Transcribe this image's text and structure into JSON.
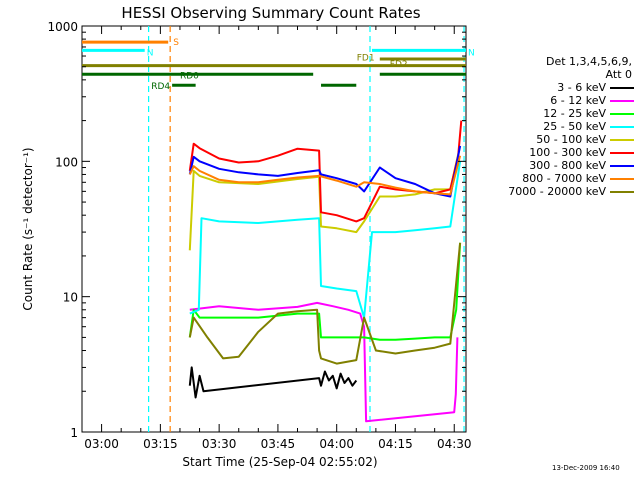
{
  "chart_data": {
    "type": "line",
    "title": "HESSI Observing Summary Count Rates",
    "xlabel": "Start Time (25-Sep-04 02:55:02)",
    "ylabel": "Count Rate (s⁻¹ detector⁻¹)",
    "yscale": "log",
    "ylim": [
      1,
      1000
    ],
    "xlim_min": [
      0,
      98
    ],
    "x_ticks_min": [
      5,
      20,
      35,
      50,
      65,
      80,
      95
    ],
    "x_tick_labels": [
      "03:00",
      "03:15",
      "03:30",
      "03:45",
      "04:00",
      "04:15",
      "04:30"
    ],
    "y_ticks": [
      1,
      10,
      100,
      1000
    ],
    "y_tick_labels": [
      "1",
      "10",
      "100",
      "1000"
    ],
    "legend_header": [
      "Det 1,3,4,5,6,9,",
      "Att 0"
    ],
    "legend_placement": "right, outside plot",
    "series": [
      {
        "name": "3 - 6 keV",
        "color": "#000000",
        "x": [
          27.5,
          28,
          29,
          30,
          31,
          60.5,
          61,
          62,
          63,
          64,
          65,
          66,
          67,
          68,
          69,
          70
        ],
        "y": [
          2.2,
          3,
          1.8,
          2.6,
          2,
          2.5,
          2.2,
          2.8,
          2.4,
          2.6,
          2.1,
          2.7,
          2.3,
          2.5,
          2.2,
          2.4
        ]
      },
      {
        "name": "6 - 12 keV",
        "color": "#ff00ff",
        "x": [
          27.5,
          35,
          45,
          55,
          60,
          64,
          68,
          71,
          72,
          72.5,
          95,
          95.4,
          95.8
        ],
        "y": [
          8,
          8.5,
          8,
          8.4,
          9,
          8.5,
          8,
          7.5,
          6,
          1.2,
          1.4,
          1.9,
          5
        ]
      },
      {
        "name": "12 - 25 keV",
        "color": "#00ff00",
        "x": [
          27.5,
          28.5,
          30,
          35,
          45,
          55,
          60.5,
          61,
          62,
          68,
          72,
          76,
          80,
          85,
          90,
          94,
          95.5,
          96.5
        ],
        "y": [
          5,
          8,
          7,
          7,
          7,
          7.5,
          7.5,
          5,
          5,
          5,
          5,
          4.8,
          4.8,
          4.9,
          5,
          5,
          8,
          25
        ]
      },
      {
        "name": "25 - 50 keV",
        "color": "#00ffff",
        "x": [
          27.5,
          29.8,
          30.5,
          35,
          45,
          55,
          60.5,
          61,
          65,
          70,
          72,
          74,
          80,
          85,
          90,
          94,
          96.5
        ],
        "y": [
          7.5,
          8,
          38,
          36,
          35,
          37,
          38,
          12,
          11.5,
          11,
          7,
          30,
          30,
          31,
          32,
          33,
          100
        ]
      },
      {
        "name": "50 - 100 keV",
        "color": "#cccc00",
        "x": [
          27.5,
          28.5,
          30,
          35,
          45,
          55,
          60.5,
          61,
          65,
          70,
          72,
          76,
          80,
          85,
          90,
          94,
          96.5
        ],
        "y": [
          22,
          85,
          78,
          70,
          68,
          74,
          77,
          33,
          32,
          30,
          36,
          55,
          55,
          57,
          62,
          62,
          130
        ]
      },
      {
        "name": "100 - 300 keV",
        "color": "#ff0000",
        "x": [
          27.5,
          28.5,
          30,
          35,
          40,
          45,
          50,
          55,
          60.5,
          61,
          65,
          70,
          72,
          76,
          80,
          85,
          90,
          94,
          96,
          96.8
        ],
        "y": [
          85,
          135,
          125,
          105,
          98,
          100,
          110,
          124,
          120,
          42,
          40,
          36,
          38,
          65,
          62,
          60,
          58,
          62,
          110,
          200
        ]
      },
      {
        "name": "300 - 800 keV",
        "color": "#0000ff",
        "x": [
          27.5,
          28.5,
          30,
          35,
          40,
          45,
          50,
          55,
          60.5,
          61,
          65,
          70,
          72,
          76,
          80,
          85,
          90,
          94,
          96.5
        ],
        "y": [
          80,
          108,
          100,
          88,
          83,
          80,
          78,
          82,
          86,
          80,
          75,
          68,
          60,
          90,
          75,
          68,
          58,
          55,
          130
        ]
      },
      {
        "name": "800 - 7000 keV",
        "color": "#ff8000",
        "x": [
          27.5,
          28.5,
          30,
          35,
          40,
          45,
          50,
          55,
          60.5,
          65,
          70,
          72,
          76,
          80,
          85,
          90,
          94,
          96.5
        ],
        "y": [
          80,
          92,
          85,
          73,
          70,
          70,
          73,
          76,
          78,
          72,
          65,
          70,
          68,
          64,
          60,
          58,
          57,
          110
        ]
      },
      {
        "name": "7000 - 20000 keV",
        "color": "#808000",
        "x": [
          27.5,
          28.5,
          32,
          36,
          40,
          45,
          50,
          55,
          60,
          60.5,
          61,
          65,
          70,
          72,
          75,
          80,
          85,
          90,
          94,
          96.5
        ],
        "y": [
          5,
          7,
          5,
          3.5,
          3.6,
          5.5,
          7.5,
          7.8,
          8,
          4,
          3.5,
          3.2,
          3.4,
          7,
          4,
          3.8,
          4,
          4.2,
          4.5,
          25
        ]
      }
    ],
    "state_bars": [
      {
        "label": "S",
        "color": "#ff8000",
        "label_color": "#ff8000",
        "y": 760,
        "x_start": 0,
        "x_end": 22
      },
      {
        "label": "N",
        "color": "#00ffff",
        "label_color": "#00ffff",
        "y": 660,
        "x_start": 0,
        "x_end": 16
      },
      {
        "label": "N",
        "color": "#00ffff",
        "label_color": "",
        "y": 660,
        "x_start": 74,
        "x_end": 98
      },
      {
        "label": "FD1",
        "color": "#808000",
        "label_color": "#808000",
        "y": 510,
        "x_start": 0,
        "x_end": 98
      },
      {
        "label": "FD2",
        "color": "#808000",
        "label_color": "#808000",
        "y": 570,
        "x_start": 76,
        "x_end": 98
      },
      {
        "label": "RD0",
        "color": "#006600",
        "label_color": "#006600",
        "y": 440,
        "x_start": 0,
        "x_end": 59
      },
      {
        "label": "RD4",
        "color": "#006600",
        "label_color": "#006600",
        "y": 365,
        "x_start": 23,
        "x_end": 29
      },
      {
        "label": "",
        "color": "#006600",
        "label_color": "",
        "y": 365,
        "x_start": 61,
        "x_end": 70
      },
      {
        "label": "",
        "color": "#006600",
        "label_color": "",
        "y": 440,
        "x_start": 76,
        "x_end": 98
      }
    ],
    "vertical_markers": [
      {
        "x": 17,
        "color": "#00ffff"
      },
      {
        "x": 22.5,
        "color": "#ff8000"
      },
      {
        "x": 73.5,
        "color": "#00ffff"
      },
      {
        "x": 97.5,
        "color": "#00ffff"
      }
    ]
  },
  "footnote": "13-Dec-2009 16:40"
}
